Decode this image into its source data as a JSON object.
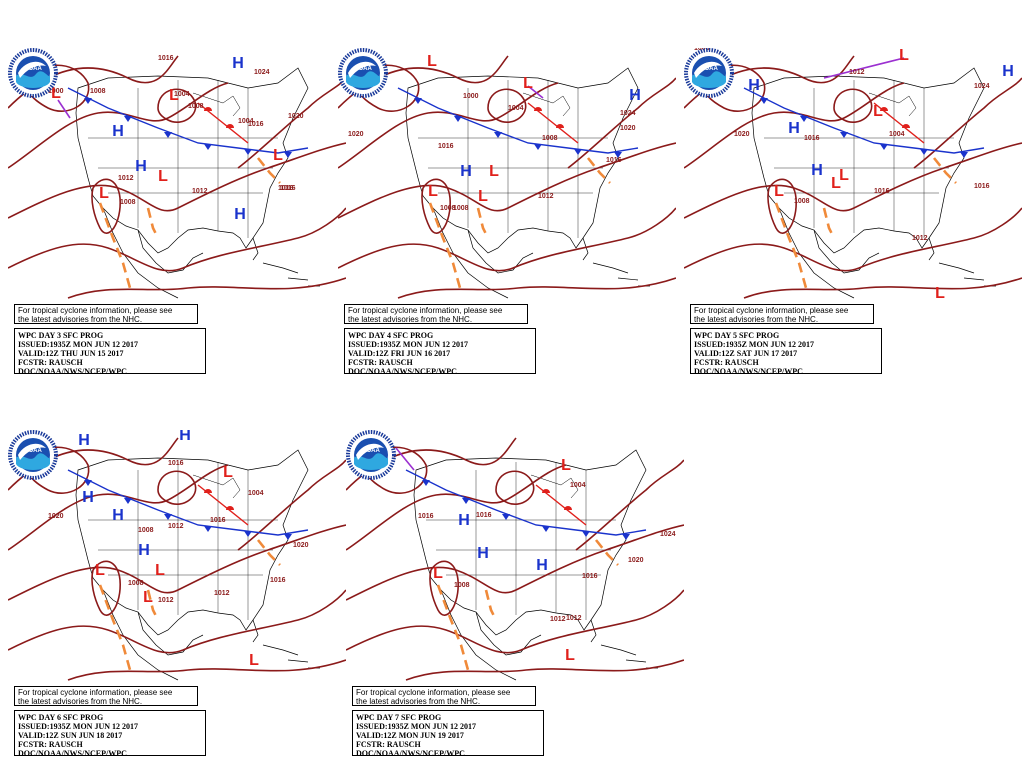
{
  "tropical_note_line1": "For tropical cyclone information, please see",
  "tropical_note_line2": "the latest advisories from the NHC.",
  "logo_text": "NOAA",
  "colors": {
    "isobar": "#8b1a1a",
    "high": "#1a33cc",
    "low": "#e0201b",
    "trough": "#f08a3a",
    "occluded": "#9b30d0"
  },
  "panels": [
    {
      "title": "WPC DAY 3 SFC PROG",
      "issued": "ISSUED:1935Z MON JUN 12 2017",
      "valid": "VALID:12Z THU JUN 15 2017",
      "fcstr": "FCSTR: RAUSCH",
      "agency": "DOC/NOAA/NWS/NCEP/WPC",
      "isobar_labels": [
        "1016",
        "1008",
        "1000",
        "1008",
        "1004",
        "1016",
        "1016",
        "1020",
        "1012",
        "1008",
        "1012",
        "1016",
        "1024",
        "1004"
      ]
    },
    {
      "title": "WPC DAY 4 SFC PROG",
      "issued": "ISSUED:1935Z MON JUN 12 2017",
      "valid": "VALID:12Z FRI JUN 16 2017",
      "fcstr": "FCSTR: RAUSCH",
      "agency": "DOC/NOAA/NWS/NCEP/WPC",
      "isobar_labels": [
        "1020",
        "1016",
        "1008",
        "1000",
        "1004",
        "1024",
        "1020",
        "1012",
        "1008",
        "1016",
        "1008"
      ]
    },
    {
      "title": "WPC DAY 5 SFC PROG",
      "issued": "ISSUED:1935Z MON JUN 12 2017",
      "valid": "VALID:12Z SAT JUN 17 2017",
      "fcstr": "FCSTR: RAUSCH",
      "agency": "DOC/NOAA/NWS/NCEP/WPC",
      "isobar_labels": [
        "1008",
        "1020",
        "1016",
        "1012",
        "1004",
        "1024",
        "1008",
        "1016",
        "1012",
        "1016"
      ]
    },
    {
      "title": "WPC DAY 6 SFC PROG",
      "issued": "ISSUED:1935Z MON JUN 12 2017",
      "valid": "VALID:12Z SUN JUN 18 2017",
      "fcstr": "FCSTR: RAUSCH",
      "agency": "DOC/NOAA/NWS/NCEP/WPC",
      "isobar_labels": [
        "1020",
        "1016",
        "1012",
        "1008",
        "1004",
        "1016",
        "1008",
        "1012",
        "1020",
        "1016",
        "1012"
      ]
    },
    {
      "title": "WPC DAY 7 SFC PROG",
      "issued": "ISSUED:1935Z MON JUN 12 2017",
      "valid": "VALID:12Z MON JUN 19 2017",
      "fcstr": "FCSTR: RAUSCH",
      "agency": "DOC/NOAA/NWS/NCEP/WPC",
      "isobar_labels": [
        "1008",
        "1016",
        "1016",
        "1004",
        "1008",
        "1020",
        "1024",
        "1016",
        "1012",
        "1012"
      ]
    }
  ]
}
